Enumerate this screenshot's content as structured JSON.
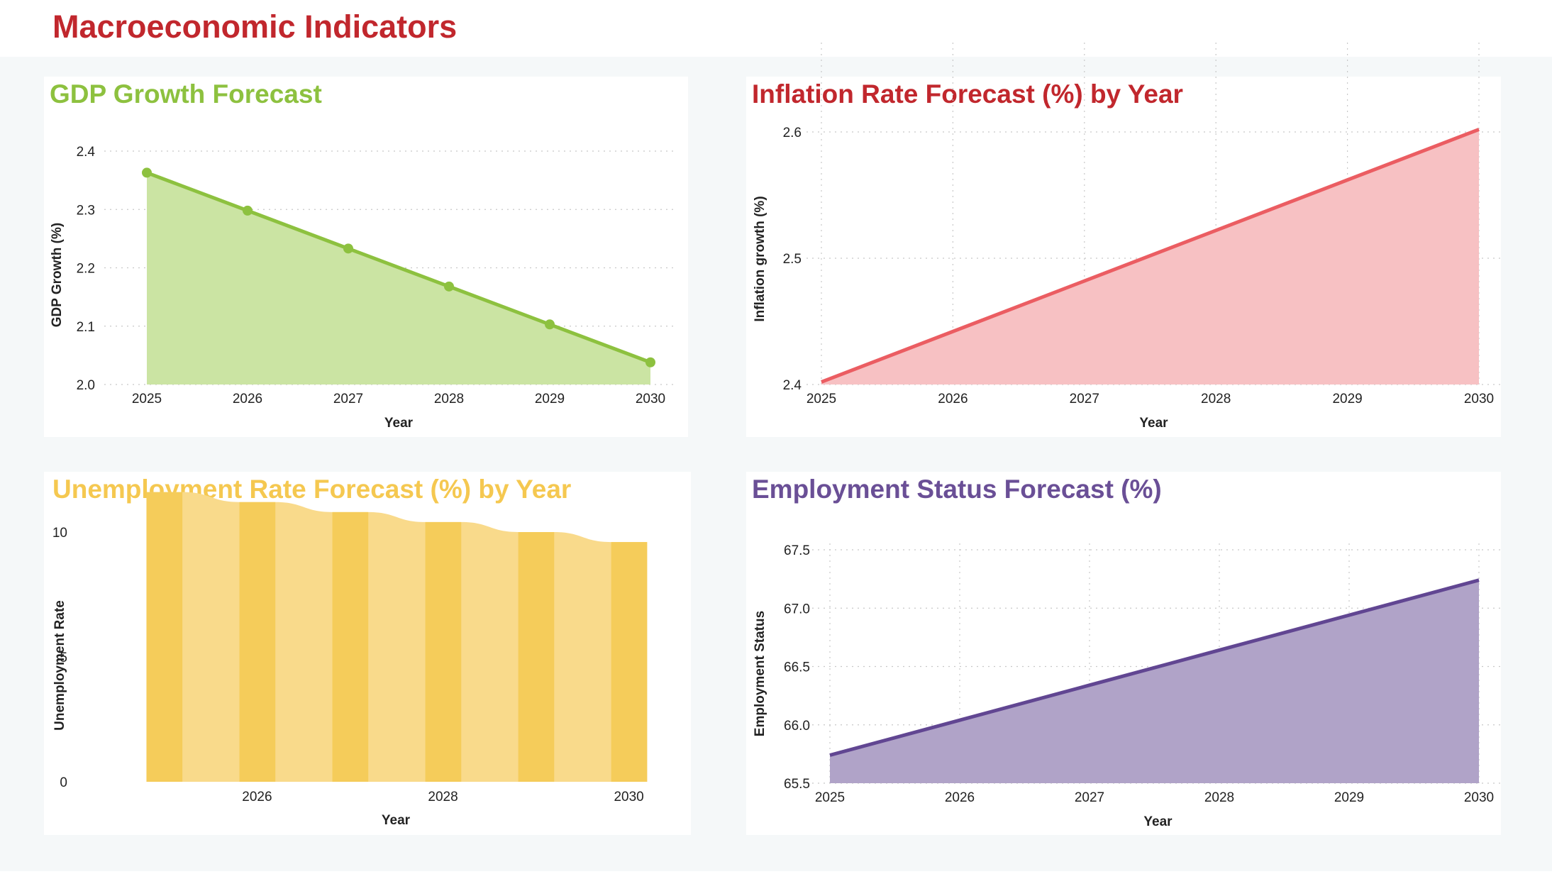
{
  "page": {
    "title": "Macroeconomic Indicators"
  },
  "chart_data": [
    {
      "id": "gdp",
      "type": "area",
      "title": "GDP Growth Forecast",
      "title_color": "#8dc13f",
      "line_color": "#8dc13f",
      "fill_color": "#cbe4a3",
      "markers": true,
      "x": [
        2025,
        2026,
        2027,
        2028,
        2029,
        2030
      ],
      "x_ticks": [
        "2025",
        "2026",
        "2027",
        "2028",
        "2029",
        "2030"
      ],
      "values": [
        2.363,
        2.298,
        2.233,
        2.168,
        2.103,
        2.038
      ],
      "xlabel": "Year",
      "ylabel": "GDP Growth (%)",
      "ylim": [
        2.0,
        2.4
      ],
      "y_ticks": [
        "2.0",
        "2.1",
        "2.2",
        "2.3",
        "2.4"
      ],
      "grid": "horizontal"
    },
    {
      "id": "inflation",
      "type": "area",
      "title": "Inflation Rate Forecast (%) by Year",
      "title_color": "#c1272d",
      "line_color": "#eb5d62",
      "fill_color": "#f7c1c3",
      "markers": false,
      "x": [
        2025,
        2026,
        2027,
        2028,
        2029,
        2030
      ],
      "x_ticks": [
        "2025",
        "2026",
        "2027",
        "2028",
        "2029",
        "2030"
      ],
      "values": [
        2.402,
        2.442,
        2.482,
        2.522,
        2.562,
        2.602
      ],
      "xlabel": "Year",
      "ylabel": "Inflation growth (%)",
      "ylim": [
        2.4,
        2.65
      ],
      "y_ticks": [
        "2.4",
        "2.5",
        "2.6"
      ],
      "grid": "both"
    },
    {
      "id": "unemployment",
      "type": "bar",
      "title": "Unemployment Rate Forecast (%) by Year",
      "title_color": "#f5c850",
      "bar_color": "#f5cc5a",
      "band_color": "#f9da8b",
      "x": [
        2025,
        2026,
        2027,
        2028,
        2029,
        2030
      ],
      "x_ticks": [
        "2026",
        "2028",
        "2030"
      ],
      "values": [
        11.6,
        11.2,
        10.8,
        10.4,
        10.0,
        9.6
      ],
      "xlabel": "Year",
      "ylabel": "Unemployment Rate",
      "ylim": [
        0,
        12.5
      ],
      "y_ticks": [
        "0",
        "5",
        "10"
      ],
      "grid": "vertical"
    },
    {
      "id": "employment",
      "type": "area",
      "title": "Employment Status Forecast (%)",
      "title_color": "#6a4f96",
      "line_color": "#614692",
      "fill_color": "#b0a3c8",
      "markers": false,
      "x": [
        2025,
        2026,
        2027,
        2028,
        2029,
        2030
      ],
      "x_ticks": [
        "2025",
        "2026",
        "2027",
        "2028",
        "2029",
        "2030"
      ],
      "values": [
        65.74,
        66.04,
        66.34,
        66.64,
        66.94,
        67.24
      ],
      "xlabel": "Year",
      "ylabel": "Employment Status",
      "ylim": [
        65.5,
        67.5
      ],
      "y_ticks": [
        "65.5",
        "66.0",
        "66.5",
        "67.0",
        "67.5"
      ],
      "grid": "both"
    }
  ]
}
